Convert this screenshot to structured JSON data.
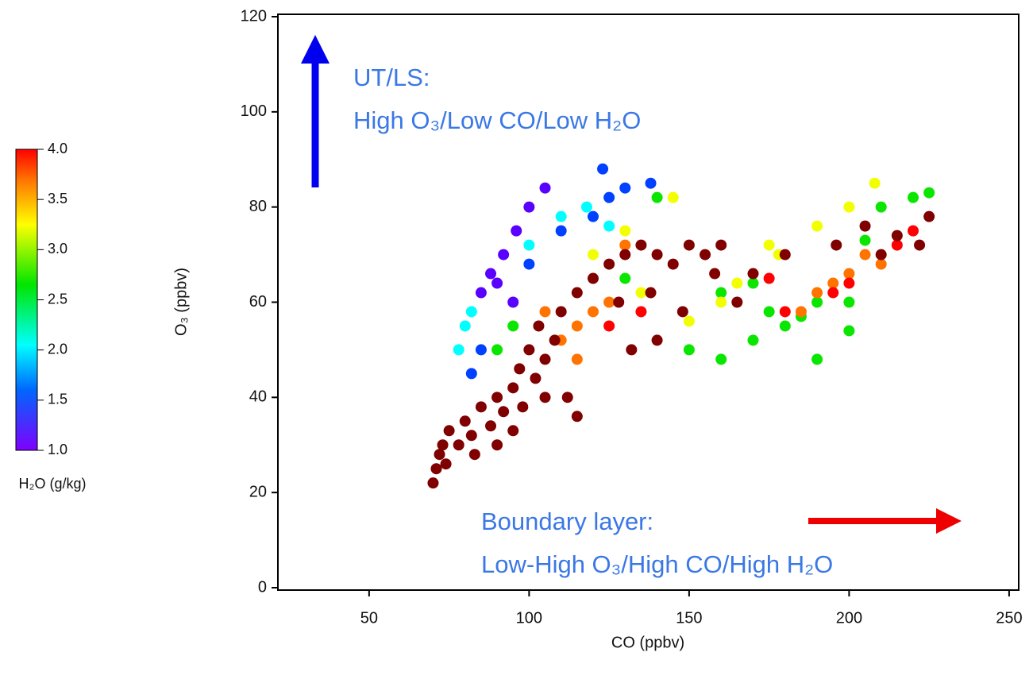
{
  "chart_data": {
    "type": "scatter",
    "x_label": "CO (ppbv)",
    "y_label": "O₃ (ppbv)",
    "xlim": [
      21.5,
      253
    ],
    "ylim": [
      -0.5,
      120.5
    ],
    "xticks": [
      50,
      100,
      150,
      200,
      250
    ],
    "yticks": [
      0,
      20,
      40,
      60,
      80,
      100,
      120
    ],
    "colorbar_label": "H₂O (g/kg)",
    "clim": [
      1.0,
      4.0
    ],
    "colorbar_ticks": [
      {
        "value": 1.0,
        "label": "1.0"
      },
      {
        "value": 1.5,
        "label": "1.5"
      },
      {
        "value": 2.0,
        "label": "2.0"
      },
      {
        "value": 2.5,
        "label": "2.5"
      },
      {
        "value": 3.0,
        "label": "3.0"
      },
      {
        "value": 3.5,
        "label": "3.5"
      },
      {
        "value": 4.0,
        "label": "4.0"
      }
    ],
    "over_color": "#800000",
    "annotations": [
      "UT/LS:",
      "High O₃/Low CO/Low H₂O",
      "Boundary layer:",
      "Low-High O₃/High CO/High H₂O"
    ],
    "x": [
      85,
      88,
      92,
      96,
      100,
      105,
      95,
      90,
      82,
      85,
      100,
      110,
      120,
      125,
      130,
      138,
      123,
      78,
      80,
      100,
      110,
      118,
      125,
      82,
      90,
      95,
      140,
      130,
      160,
      170,
      175,
      180,
      190,
      200,
      210,
      220,
      225,
      150,
      160,
      170,
      185,
      205,
      200,
      190,
      120,
      145,
      175,
      190,
      200,
      208,
      165,
      178,
      160,
      135,
      150,
      130,
      105,
      110,
      115,
      120,
      125,
      115,
      130,
      195,
      200,
      205,
      210,
      190,
      185,
      125,
      135,
      180,
      195,
      200,
      215,
      220,
      175,
      70,
      71,
      72,
      73,
      75,
      74,
      78,
      80,
      82,
      85,
      83,
      88,
      90,
      92,
      95,
      97,
      100,
      98,
      102,
      105,
      103,
      108,
      110,
      112,
      115,
      90,
      95,
      105,
      115,
      120,
      125,
      130,
      135,
      140,
      145,
      150,
      155,
      160,
      128,
      138,
      148,
      158,
      165,
      170,
      180,
      196,
      205,
      215,
      225,
      222,
      210,
      140,
      132
    ],
    "values": [
      62,
      66,
      70,
      75,
      80,
      84,
      60,
      64,
      45,
      50,
      68,
      75,
      78,
      82,
      84,
      85,
      88,
      50,
      55,
      72,
      78,
      80,
      76,
      58,
      50,
      55,
      82,
      65,
      62,
      64,
      58,
      55,
      60,
      60,
      80,
      82,
      83,
      50,
      48,
      52,
      57,
      73,
      54,
      48,
      70,
      82,
      72,
      76,
      80,
      85,
      64,
      70,
      60,
      62,
      56,
      75,
      58,
      52,
      55,
      58,
      60,
      48,
      72,
      64,
      66,
      70,
      68,
      62,
      58,
      55,
      58,
      58,
      62,
      64,
      72,
      75,
      65,
      22,
      25,
      28,
      30,
      33,
      26,
      30,
      35,
      32,
      38,
      28,
      34,
      40,
      37,
      42,
      46,
      50,
      38,
      44,
      48,
      55,
      52,
      58,
      40,
      36,
      30,
      33,
      40,
      62,
      65,
      68,
      70,
      72,
      70,
      68,
      72,
      70,
      72,
      60,
      62,
      58,
      66,
      60,
      66,
      70,
      72,
      76,
      74,
      78,
      72,
      70,
      52,
      50
    ],
    "h2o": [
      1.1,
      1.1,
      1.1,
      1.1,
      1.1,
      1.1,
      1.1,
      1.1,
      1.5,
      1.5,
      1.5,
      1.5,
      1.5,
      1.5,
      1.5,
      1.5,
      1.5,
      2.0,
      2.0,
      2.0,
      2.0,
      2.0,
      2.0,
      2.0,
      2.7,
      2.7,
      2.7,
      2.7,
      2.7,
      2.7,
      2.7,
      2.7,
      2.7,
      2.7,
      2.7,
      2.7,
      2.7,
      2.7,
      2.7,
      2.7,
      2.7,
      2.7,
      2.7,
      2.7,
      3.3,
      3.3,
      3.3,
      3.3,
      3.3,
      3.3,
      3.3,
      3.3,
      3.3,
      3.3,
      3.3,
      3.3,
      3.7,
      3.7,
      3.7,
      3.7,
      3.7,
      3.7,
      3.7,
      3.7,
      3.7,
      3.7,
      3.7,
      3.7,
      3.7,
      4.0,
      4.0,
      4.0,
      4.0,
      4.0,
      4.0,
      4.0,
      4.0,
      4.5,
      4.5,
      4.5,
      4.5,
      4.5,
      4.5,
      4.5,
      4.5,
      4.5,
      4.5,
      4.5,
      4.5,
      4.5,
      4.5,
      4.5,
      4.5,
      4.5,
      4.5,
      4.5,
      4.5,
      4.5,
      4.5,
      4.5,
      4.5,
      4.5,
      4.5,
      4.5,
      4.5,
      4.5,
      4.5,
      4.5,
      4.5,
      4.5,
      4.5,
      4.5,
      4.5,
      4.5,
      4.5,
      4.5,
      4.5,
      4.5,
      4.5,
      4.5,
      4.5,
      4.5,
      4.5,
      4.5,
      4.5,
      4.5,
      4.5,
      4.5,
      4.5,
      4.5
    ]
  }
}
